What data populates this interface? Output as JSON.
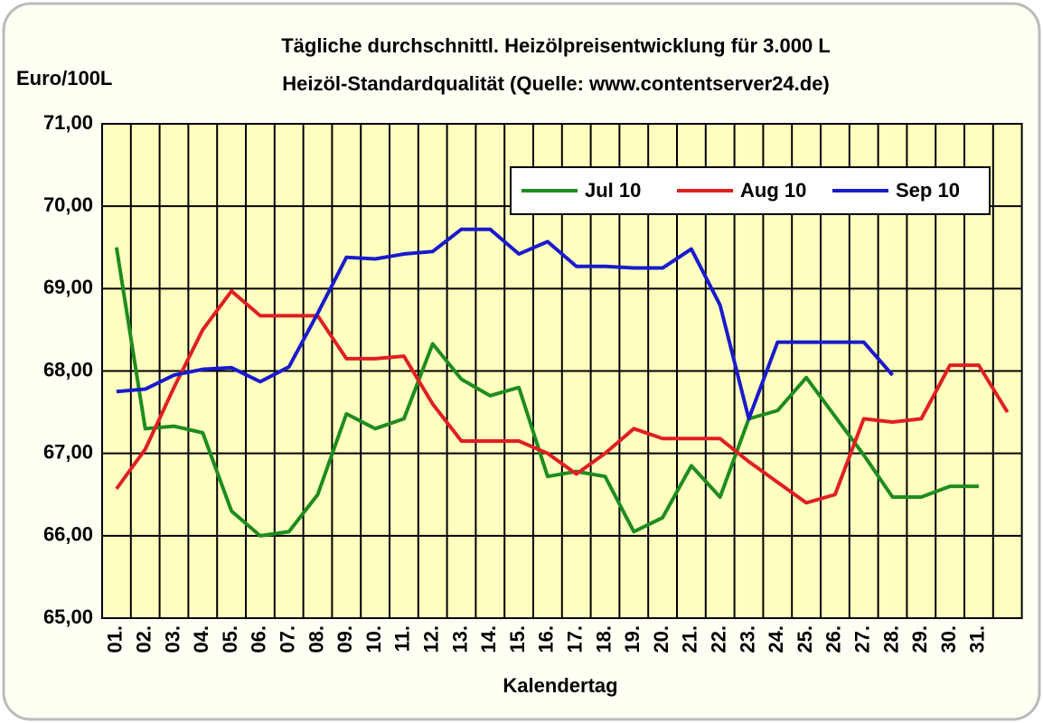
{
  "chart_data": {
    "type": "line",
    "title": "Tägliche durchschnittl. Heizölpreisentwicklung für 3.000 L",
    "subtitle": "Heizöl-Standardqualität (Quelle: www.contentserver24.de)",
    "y_label": "Euro/100L",
    "x_label": "Kalendertag",
    "categories": [
      "01.",
      "02.",
      "03.",
      "04.",
      "05.",
      "06.",
      "07.",
      "08.",
      "09.",
      "10.",
      "11.",
      "12.",
      "13.",
      "14.",
      "15.",
      "16.",
      "17.",
      "18.",
      "19.",
      "20.",
      "21.",
      "22.",
      "23.",
      "24.",
      "25.",
      "26.",
      "27.",
      "28.",
      "29.",
      "30.",
      "31.",
      null
    ],
    "series": [
      {
        "name": "Jul 10",
        "color": "#1e8c1e",
        "values": [
          69.5,
          67.3,
          67.33,
          67.25,
          66.3,
          66.0,
          66.05,
          66.5,
          67.48,
          67.3,
          67.42,
          68.33,
          67.9,
          67.7,
          67.8,
          66.72,
          66.78,
          66.72,
          66.05,
          66.22,
          66.85,
          66.47,
          67.42,
          67.52,
          67.92,
          67.45,
          66.98,
          66.47,
          66.47,
          66.6,
          66.6,
          null
        ]
      },
      {
        "name": "Aug 10",
        "color": "#e02020",
        "values": [
          66.57,
          67.05,
          67.8,
          68.5,
          68.97,
          68.67,
          68.67,
          68.67,
          68.15,
          68.15,
          68.18,
          67.6,
          67.15,
          67.15,
          67.15,
          67.0,
          66.75,
          67.0,
          67.3,
          67.18,
          67.18,
          67.18,
          66.9,
          66.65,
          66.4,
          66.5,
          67.42,
          67.38,
          67.42,
          68.07,
          68.07,
          67.5
        ]
      },
      {
        "name": "Sep 10",
        "color": "#1a1acc",
        "values": [
          67.75,
          67.78,
          67.95,
          68.02,
          68.04,
          67.87,
          68.05,
          68.7,
          69.38,
          69.36,
          69.42,
          69.45,
          69.72,
          69.72,
          69.42,
          69.57,
          69.27,
          69.27,
          69.25,
          69.25,
          69.48,
          68.8,
          67.42,
          68.35,
          68.35,
          68.35,
          68.35,
          67.95,
          null,
          null,
          null,
          null
        ]
      }
    ],
    "ylim": [
      65,
      71
    ],
    "yticks": [
      {
        "value": 65,
        "label": "65,00"
      },
      {
        "value": 66,
        "label": "66,00"
      },
      {
        "value": 67,
        "label": "67,00"
      },
      {
        "value": 68,
        "label": "68,00"
      },
      {
        "value": 69,
        "label": "69,00"
      },
      {
        "value": 70,
        "label": "70,00"
      },
      {
        "value": 71,
        "label": "71,00"
      }
    ],
    "grid": true,
    "legend": "top-right"
  }
}
